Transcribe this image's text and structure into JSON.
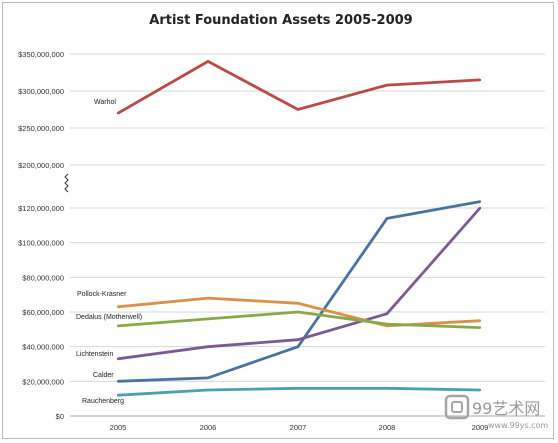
{
  "chart_data": {
    "type": "line",
    "title": "Artist Foundation Assets 2005-2009",
    "xlabel": "",
    "ylabel": "",
    "x": [
      "2005",
      "2006",
      "2007",
      "2008",
      "2009"
    ],
    "grid": true,
    "legend": "inline labels at left of each line",
    "y_break": "between $200,000,000 and $120,000,000",
    "y_ticks_upper": [
      "$350,000,000",
      "$300,000,000",
      "$250,000,000",
      "$200,000,000"
    ],
    "y_ticks_lower": [
      "$120,000,000",
      "$100,000,000",
      "$80,000,000",
      "$60,000,000",
      "$40,000,000",
      "$20,000,000",
      "$0"
    ],
    "ylim_lower": [
      0,
      120000000
    ],
    "ylim_upper": [
      200000000,
      350000000
    ],
    "series": [
      {
        "name": "Warhol",
        "color": "#b94a48",
        "values": [
          270000000,
          340000000,
          275000000,
          308000000,
          315000000
        ]
      },
      {
        "name": "Calder",
        "color": "#4a72a0",
        "values": [
          20000000,
          22000000,
          40000000,
          114000000,
          132000000
        ]
      },
      {
        "name": "Lichtenstein",
        "color": "#7a5a94",
        "values": [
          33000000,
          40000000,
          44000000,
          59000000,
          120000000
        ]
      },
      {
        "name": "Pollock-Krasner",
        "color": "#d9914a",
        "values": [
          63000000,
          68000000,
          65000000,
          52000000,
          55000000
        ]
      },
      {
        "name": "Dedalus (Motherwell)",
        "color": "#8aa84a",
        "values": [
          52000000,
          56000000,
          60000000,
          53000000,
          51000000
        ]
      },
      {
        "name": "Rauchenberg",
        "color": "#4aa0b0",
        "values": [
          12000000,
          15000000,
          16000000,
          16000000,
          15000000
        ]
      }
    ]
  },
  "watermark": {
    "text": "99艺术网",
    "url": "www.99ys.com"
  }
}
